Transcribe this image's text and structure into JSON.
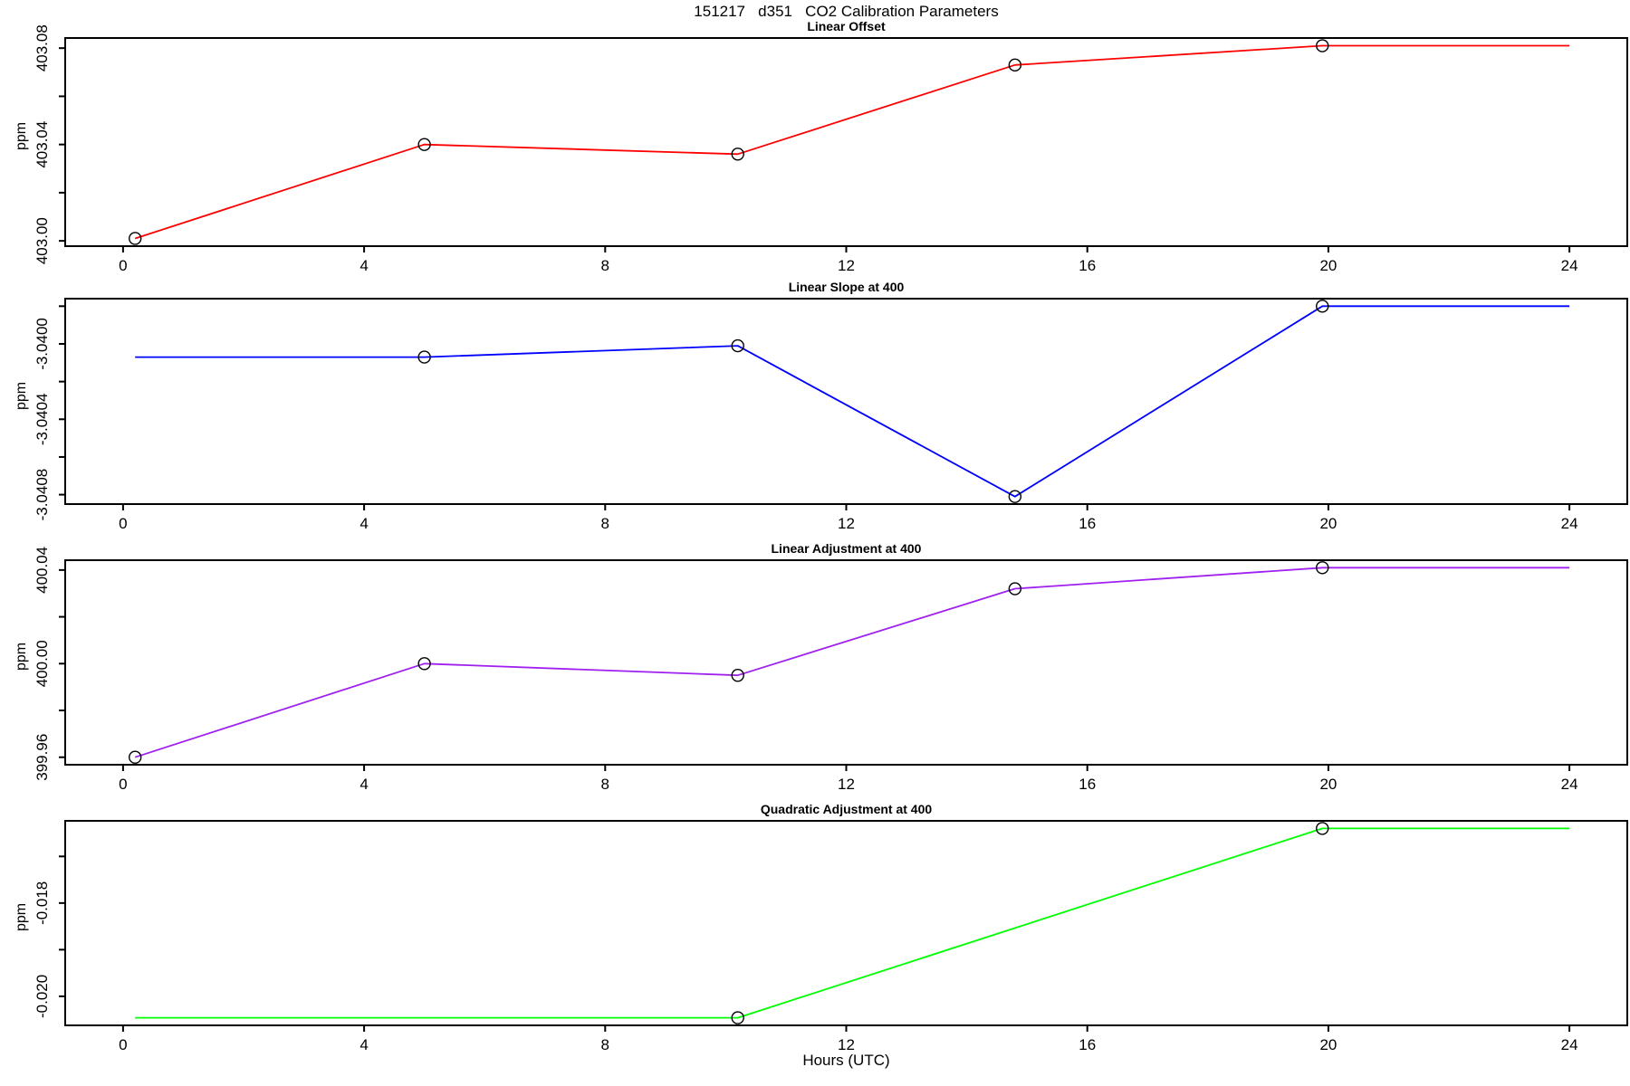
{
  "page": {
    "title": "151217   d351   CO2 Calibration Parameters",
    "xlabel": "Hours (UTC)",
    "background": "#FFFFFF",
    "axis_color": "#000000"
  },
  "chart_data": [
    {
      "type": "line",
      "title": "Linear Offset",
      "ylabel": "ppm",
      "color": "#FF0000",
      "marker_color": "#000000",
      "xlim": [
        -0.96,
        24.96
      ],
      "ylim": [
        402.9978,
        403.0842
      ],
      "xticks": [
        {
          "value": 0,
          "label": "0"
        },
        {
          "value": 4,
          "label": "4"
        },
        {
          "value": 8,
          "label": "8"
        },
        {
          "value": 12,
          "label": "12"
        },
        {
          "value": 16,
          "label": "16"
        },
        {
          "value": 20,
          "label": "20"
        },
        {
          "value": 24,
          "label": "24"
        }
      ],
      "yticks": [
        {
          "value": 403.0,
          "label": "403.00"
        },
        {
          "value": 403.02,
          "label": ""
        },
        {
          "value": 403.04,
          "label": "403.04"
        },
        {
          "value": 403.06,
          "label": ""
        },
        {
          "value": 403.08,
          "label": "403.08"
        }
      ],
      "points": [
        {
          "x": 0.2,
          "y": 403.001,
          "marker": true
        },
        {
          "x": 5.0,
          "y": 403.04,
          "marker": true
        },
        {
          "x": 10.2,
          "y": 403.036,
          "marker": true
        },
        {
          "x": 14.8,
          "y": 403.073,
          "marker": true
        },
        {
          "x": 19.9,
          "y": 403.081,
          "marker": true
        },
        {
          "x": 24.0,
          "y": 403.081,
          "marker": false
        }
      ]
    },
    {
      "type": "line",
      "title": "Linear Slope at 400",
      "ylabel": "ppm",
      "color": "#0000FF",
      "marker_color": "#000000",
      "xlim": [
        -0.96,
        24.96
      ],
      "ylim": [
        -3.04085,
        -3.03976
      ],
      "xticks": [
        {
          "value": 0,
          "label": "0"
        },
        {
          "value": 4,
          "label": "4"
        },
        {
          "value": 8,
          "label": "8"
        },
        {
          "value": 12,
          "label": "12"
        },
        {
          "value": 16,
          "label": "16"
        },
        {
          "value": 20,
          "label": "20"
        },
        {
          "value": 24,
          "label": "24"
        }
      ],
      "yticks": [
        {
          "value": -3.0408,
          "label": "-3.0408"
        },
        {
          "value": -3.0406,
          "label": ""
        },
        {
          "value": -3.0404,
          "label": "-3.0404"
        },
        {
          "value": -3.0402,
          "label": ""
        },
        {
          "value": -3.04,
          "label": "-3.0400"
        },
        {
          "value": -3.0398,
          "label": ""
        }
      ],
      "points": [
        {
          "x": 0.2,
          "y": -3.04007,
          "marker": false
        },
        {
          "x": 5.0,
          "y": -3.04007,
          "marker": true
        },
        {
          "x": 10.2,
          "y": -3.04001,
          "marker": true
        },
        {
          "x": 14.8,
          "y": -3.04081,
          "marker": true
        },
        {
          "x": 19.9,
          "y": -3.0398,
          "marker": true
        },
        {
          "x": 24.0,
          "y": -3.0398,
          "marker": false
        }
      ]
    },
    {
      "type": "line",
      "title": "Linear Adjustment at 400",
      "ylabel": "ppm",
      "color": "#A020F0",
      "marker_color": "#000000",
      "xlim": [
        -0.96,
        24.96
      ],
      "ylim": [
        399.9568,
        400.0442
      ],
      "xticks": [
        {
          "value": 0,
          "label": "0"
        },
        {
          "value": 4,
          "label": "4"
        },
        {
          "value": 8,
          "label": "8"
        },
        {
          "value": 12,
          "label": "12"
        },
        {
          "value": 16,
          "label": "16"
        },
        {
          "value": 20,
          "label": "20"
        },
        {
          "value": 24,
          "label": "24"
        }
      ],
      "yticks": [
        {
          "value": 399.96,
          "label": "399.96"
        },
        {
          "value": 399.98,
          "label": ""
        },
        {
          "value": 400.0,
          "label": "400.00"
        },
        {
          "value": 400.02,
          "label": ""
        },
        {
          "value": 400.04,
          "label": "400.04"
        }
      ],
      "points": [
        {
          "x": 0.2,
          "y": 399.96,
          "marker": true
        },
        {
          "x": 5.0,
          "y": 400.0,
          "marker": true
        },
        {
          "x": 10.2,
          "y": 399.995,
          "marker": true
        },
        {
          "x": 14.8,
          "y": 400.032,
          "marker": true
        },
        {
          "x": 19.9,
          "y": 400.041,
          "marker": true
        },
        {
          "x": 24.0,
          "y": 400.041,
          "marker": false
        }
      ]
    },
    {
      "type": "line",
      "title": "Quadratic Adjustment at 400",
      "ylabel": "ppm",
      "color": "#00FF00",
      "marker_color": "#000000",
      "xlim": [
        -0.96,
        24.96
      ],
      "ylim": [
        -0.020623,
        -0.016237
      ],
      "xticks": [
        {
          "value": 0,
          "label": "0"
        },
        {
          "value": 4,
          "label": "4"
        },
        {
          "value": 8,
          "label": "8"
        },
        {
          "value": 12,
          "label": "12"
        },
        {
          "value": 16,
          "label": "16"
        },
        {
          "value": 20,
          "label": "20"
        },
        {
          "value": 24,
          "label": "24"
        }
      ],
      "yticks": [
        {
          "value": -0.02,
          "label": "-0.020"
        },
        {
          "value": -0.019,
          "label": ""
        },
        {
          "value": -0.018,
          "label": "-0.018"
        },
        {
          "value": -0.017,
          "label": ""
        }
      ],
      "points": [
        {
          "x": 0.2,
          "y": -0.02046,
          "marker": false
        },
        {
          "x": 10.2,
          "y": -0.02046,
          "marker": true
        },
        {
          "x": 19.9,
          "y": -0.0164,
          "marker": true
        },
        {
          "x": 24.0,
          "y": -0.0164,
          "marker": false
        }
      ]
    }
  ]
}
